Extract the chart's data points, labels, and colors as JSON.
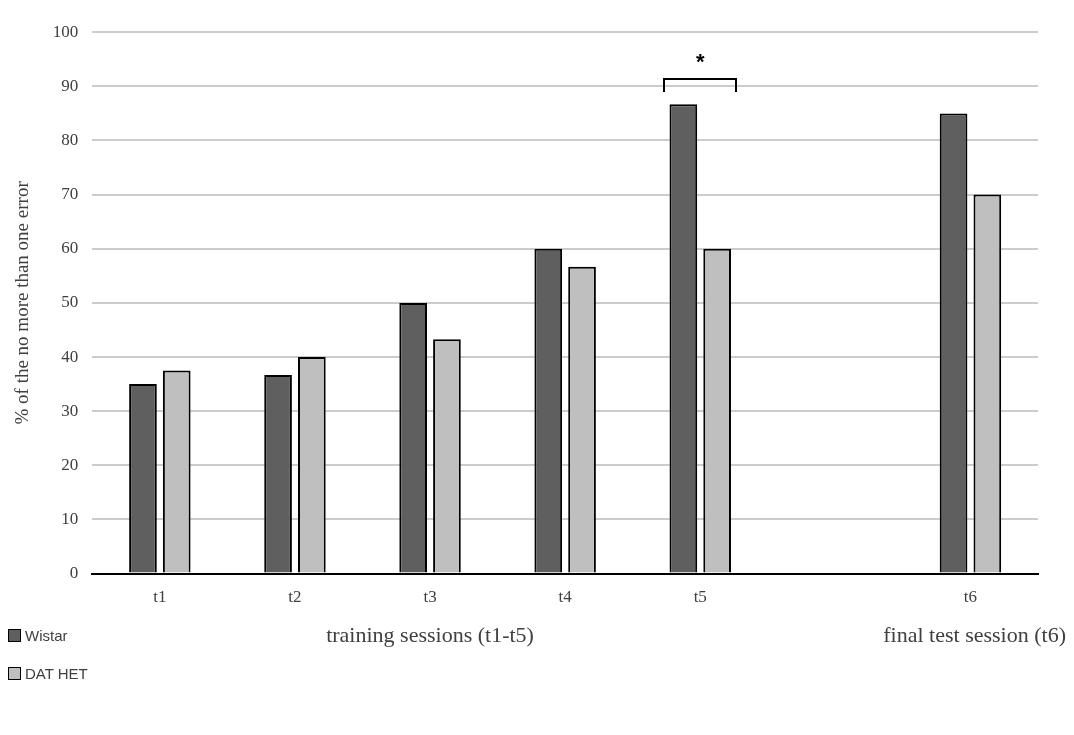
{
  "chart_data": {
    "type": "bar",
    "categories": [
      "t1",
      "t2",
      "t3",
      "t4",
      "t5",
      null,
      "t6"
    ],
    "series": [
      {
        "name": "Wistar",
        "color": "#5f5f5f",
        "values": [
          35,
          36.7,
          50,
          60,
          86.7,
          null,
          85
        ]
      },
      {
        "name": "DAT HET",
        "color": "#bfbfbf",
        "values": [
          37.5,
          40,
          43.3,
          56.7,
          60,
          null,
          70
        ]
      }
    ],
    "ylabel": "% of the no more than one error",
    "xlabel": "training sessions (t1-t5)",
    "annotations": [
      "*",
      "final test session (t6)"
    ],
    "ylim": [
      0,
      100
    ],
    "yticks": [
      0,
      10,
      20,
      30,
      40,
      50,
      60,
      70,
      80,
      90,
      100
    ],
    "grid": "y",
    "legend": "bottom left"
  }
}
